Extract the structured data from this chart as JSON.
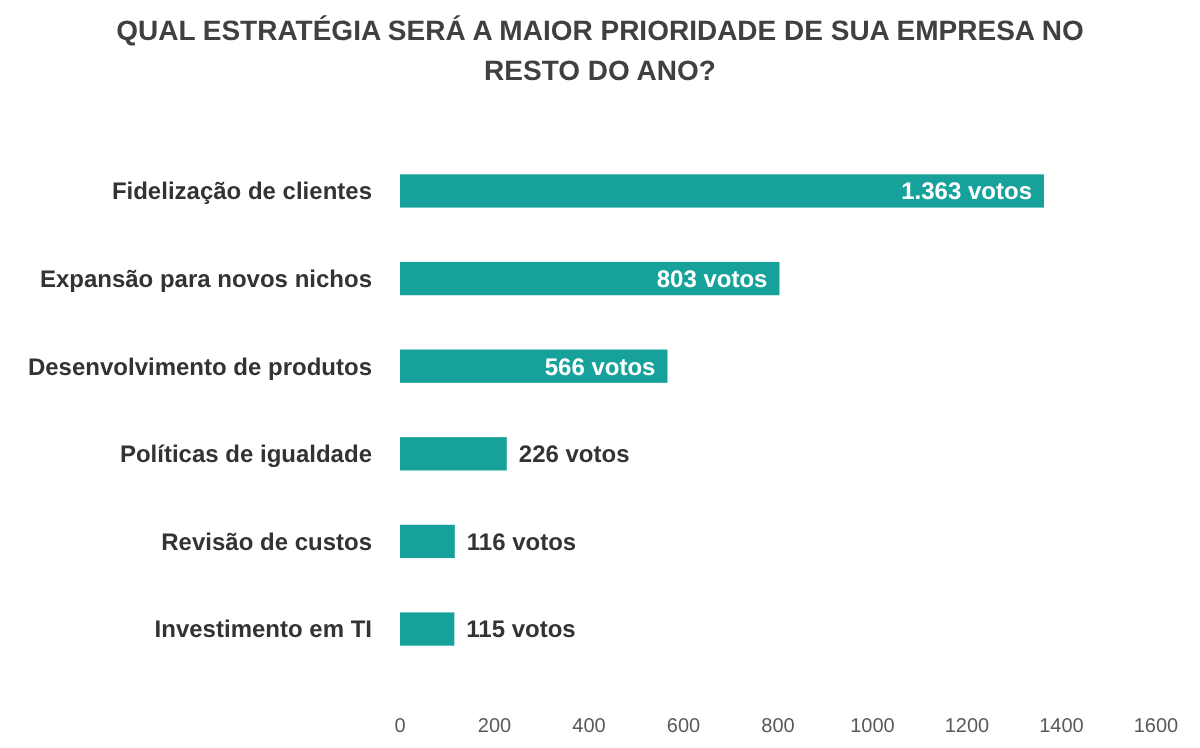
{
  "chart_data": {
    "type": "bar",
    "orientation": "horizontal",
    "title": "QUAL ESTRATÉGIA SERÁ A MAIOR PRIORIDADE DE SUA EMPRESA NO RESTO DO ANO?",
    "categories": [
      "Fidelização de clientes",
      "Expansão para novos nichos",
      "Desenvolvimento de produtos",
      "Políticas de igualdade",
      "Revisão de custos",
      "Investimento em TI"
    ],
    "values": [
      1363,
      803,
      566,
      226,
      116,
      115
    ],
    "value_labels": [
      "1.363 votos",
      "803 votos",
      "566 votos",
      "226 votos",
      "116 votos",
      "115 votos"
    ],
    "color": "#16a19b",
    "xlim": [
      0,
      1600
    ],
    "xticks": [
      0,
      200,
      400,
      600,
      800,
      1000,
      1200,
      1400,
      1600
    ],
    "grid": false
  }
}
